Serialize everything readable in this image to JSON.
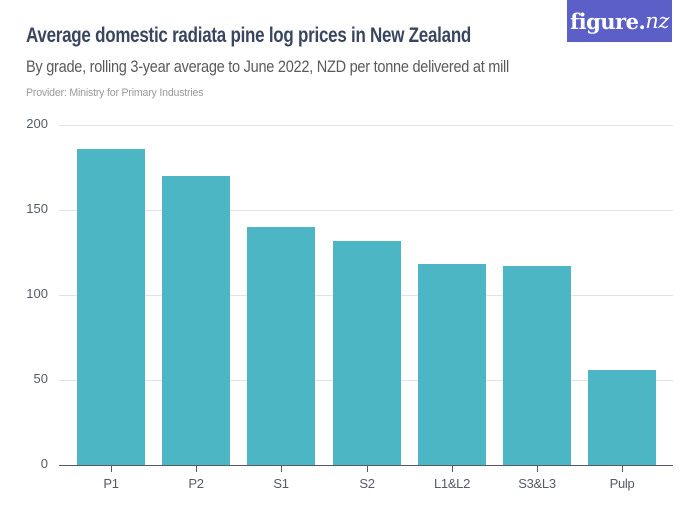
{
  "header": {
    "title": "Average domestic radiata pine log prices in New Zealand",
    "subtitle": "By grade, rolling 3-year average to June 2022, NZD per tonne delivered at mill",
    "provider": "Provider: Ministry for Primary Industries"
  },
  "logo": {
    "main": "figure.",
    "suffix": "nz"
  },
  "colors": {
    "bar": "#4db6c4",
    "logo_bg": "#5b5fc7",
    "title": "#3a4660",
    "grid": "#e3e3e3",
    "axis": "#555b66"
  },
  "chart_data": {
    "type": "bar",
    "title": "Average domestic radiata pine log prices in New Zealand",
    "subtitle": "By grade, rolling 3-year average to June 2022, NZD per tonne delivered at mill",
    "categories": [
      "P1",
      "P2",
      "S1",
      "S2",
      "L1&L2",
      "S3&L3",
      "Pulp"
    ],
    "values": [
      186,
      170,
      140,
      132,
      118,
      117,
      56
    ],
    "xlabel": "",
    "ylabel": "",
    "ylim": [
      0,
      200
    ],
    "yticks": [
      0,
      50,
      100,
      150,
      200
    ],
    "grid": true,
    "legend": "none"
  }
}
